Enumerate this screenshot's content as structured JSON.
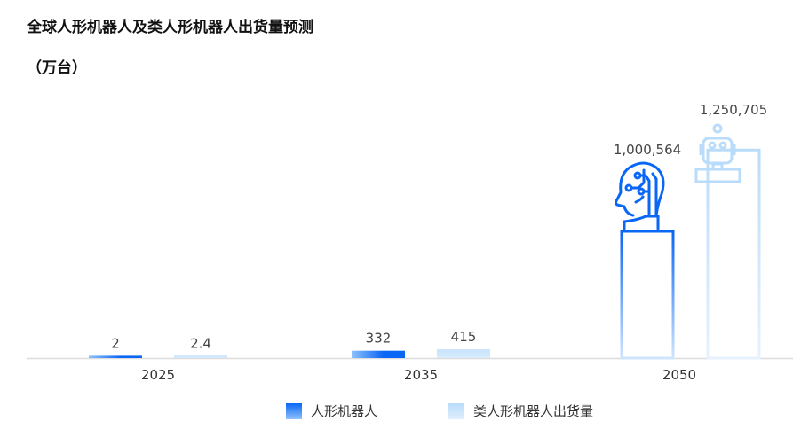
{
  "chart_data": {
    "type": "bar",
    "title": "全球人形机器人及类人形机器人出货量预测",
    "unit": "（万台）",
    "categories": [
      "2025",
      "2035",
      "2050"
    ],
    "series": [
      {
        "name": "人形机器人",
        "values": [
          2,
          332,
          1000564
        ],
        "labels": [
          "2",
          "332",
          "1,000,564"
        ],
        "color": "#0a66f5"
      },
      {
        "name": "类人形机器人出货量",
        "values": [
          2.4,
          415,
          1250705
        ],
        "labels": [
          "2.4",
          "415",
          "1,250,705"
        ],
        "color": "#b9dcfb"
      }
    ],
    "legend": "bottom",
    "grid": false,
    "icons": [
      "humanoid-head-icon",
      "robot-icon"
    ]
  }
}
